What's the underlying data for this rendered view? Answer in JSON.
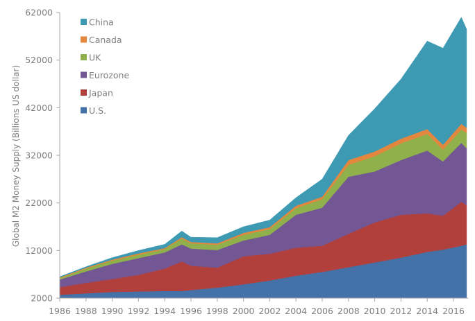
{
  "chart_data": {
    "type": "area",
    "stacked": true,
    "title": "",
    "xlabel": "",
    "ylabel": "Global M2 Money Supply (Billions US dollar)",
    "xlim": [
      1986,
      2017
    ],
    "ylim": [
      2000,
      62000
    ],
    "x_ticks": [
      "1986",
      "1988",
      "1990",
      "1992",
      "1994",
      "1996",
      "1998",
      "2000",
      "2002",
      "2004",
      "2006",
      "2008",
      "2010",
      "2012",
      "2014",
      "2016"
    ],
    "y_ticks": [
      "2000",
      "12000",
      "22000",
      "32000",
      "42000",
      "52000",
      "62000"
    ],
    "grid": false,
    "legend_position": "top-left",
    "x": [
      1986,
      1988,
      1990,
      1992,
      1994,
      1995.3,
      1996,
      1998,
      2000,
      2002,
      2004,
      2006,
      2008,
      2010,
      2012,
      2014,
      2015.2,
      2016.6,
      2017
    ],
    "series": [
      {
        "name": "U.S.",
        "color": "#4472a8",
        "values": [
          2700,
          3000,
          3300,
          3400,
          3500,
          3500,
          3700,
          4200,
          4900,
          5700,
          6700,
          7500,
          8500,
          9500,
          10500,
          11700,
          12200,
          13000,
          13300
        ]
      },
      {
        "name": "Japan",
        "color": "#b1403c",
        "values": [
          1600,
          2200,
          2700,
          3500,
          4700,
          6200,
          5100,
          4200,
          5900,
          5600,
          5900,
          5500,
          7000,
          8400,
          9000,
          8100,
          7100,
          9200,
          8200
        ]
      },
      {
        "name": "Eurozone",
        "color": "#735694",
        "values": [
          1600,
          2400,
          3200,
          3500,
          3400,
          3600,
          3600,
          3700,
          3300,
          4000,
          6900,
          8000,
          12000,
          10700,
          11500,
          13200,
          11400,
          12400,
          12000
        ]
      },
      {
        "name": "UK",
        "color": "#8fb04b",
        "values": [
          300,
          600,
          700,
          700,
          700,
          1200,
          1100,
          1100,
          1200,
          1200,
          1400,
          1800,
          2500,
          3200,
          3500,
          3500,
          2500,
          2800,
          3200
        ]
      },
      {
        "name": "Canada",
        "color": "#e3873e",
        "values": [
          150,
          200,
          200,
          300,
          200,
          300,
          300,
          300,
          400,
          400,
          500,
          500,
          1000,
          1000,
          1000,
          1000,
          1000,
          1200,
          1100
        ]
      },
      {
        "name": "China",
        "color": "#3e9ab3",
        "values": [
          150,
          200,
          400,
          600,
          800,
          1300,
          1000,
          1200,
          1300,
          1500,
          1700,
          3700,
          5200,
          9000,
          12500,
          18500,
          20300,
          22400,
          20700
        ]
      }
    ],
    "legend": [
      "China",
      "Canada",
      "UK",
      "Eurozone",
      "Japan",
      "U.S."
    ]
  }
}
